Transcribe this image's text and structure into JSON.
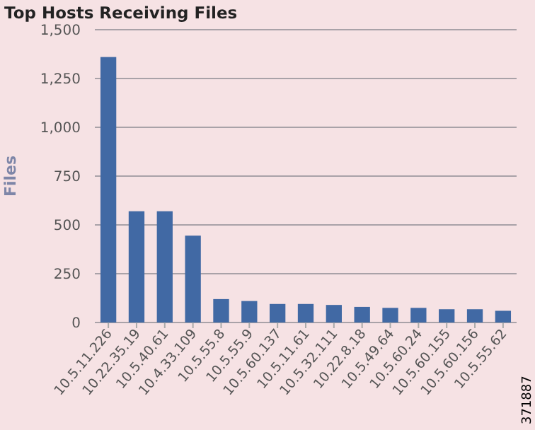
{
  "chart_data": {
    "type": "bar",
    "title": "Top Hosts Receiving Files",
    "ylabel": "Files",
    "categories": [
      "10.5.11.226",
      "10.22.35.19",
      "10.5.40.61",
      "10.4.33.109",
      "10.5.55.8",
      "10.5.55.9",
      "10.5.60.137",
      "10.5.11.61",
      "10.5.32.111",
      "10.22.8.18",
      "10.5.49.64",
      "10.5.60.24",
      "10.5.60.155",
      "10.5.60.156",
      "10.5.55.62"
    ],
    "values": [
      1360,
      570,
      570,
      445,
      120,
      110,
      95,
      95,
      90,
      80,
      75,
      75,
      68,
      68,
      60
    ],
    "color": "#4169a4",
    "ylim": [
      0,
      1500
    ],
    "yticks": [
      {
        "value": 0,
        "label": "0"
      },
      {
        "value": 250,
        "label": "250"
      },
      {
        "value": 500,
        "label": "500"
      },
      {
        "value": 750,
        "label": "750"
      },
      {
        "value": 1000,
        "label": "1,000"
      },
      {
        "value": 1250,
        "label": "1,250"
      },
      {
        "value": 1500,
        "label": "1,500"
      }
    ],
    "grid": "y",
    "annotations": [
      "371887"
    ]
  }
}
